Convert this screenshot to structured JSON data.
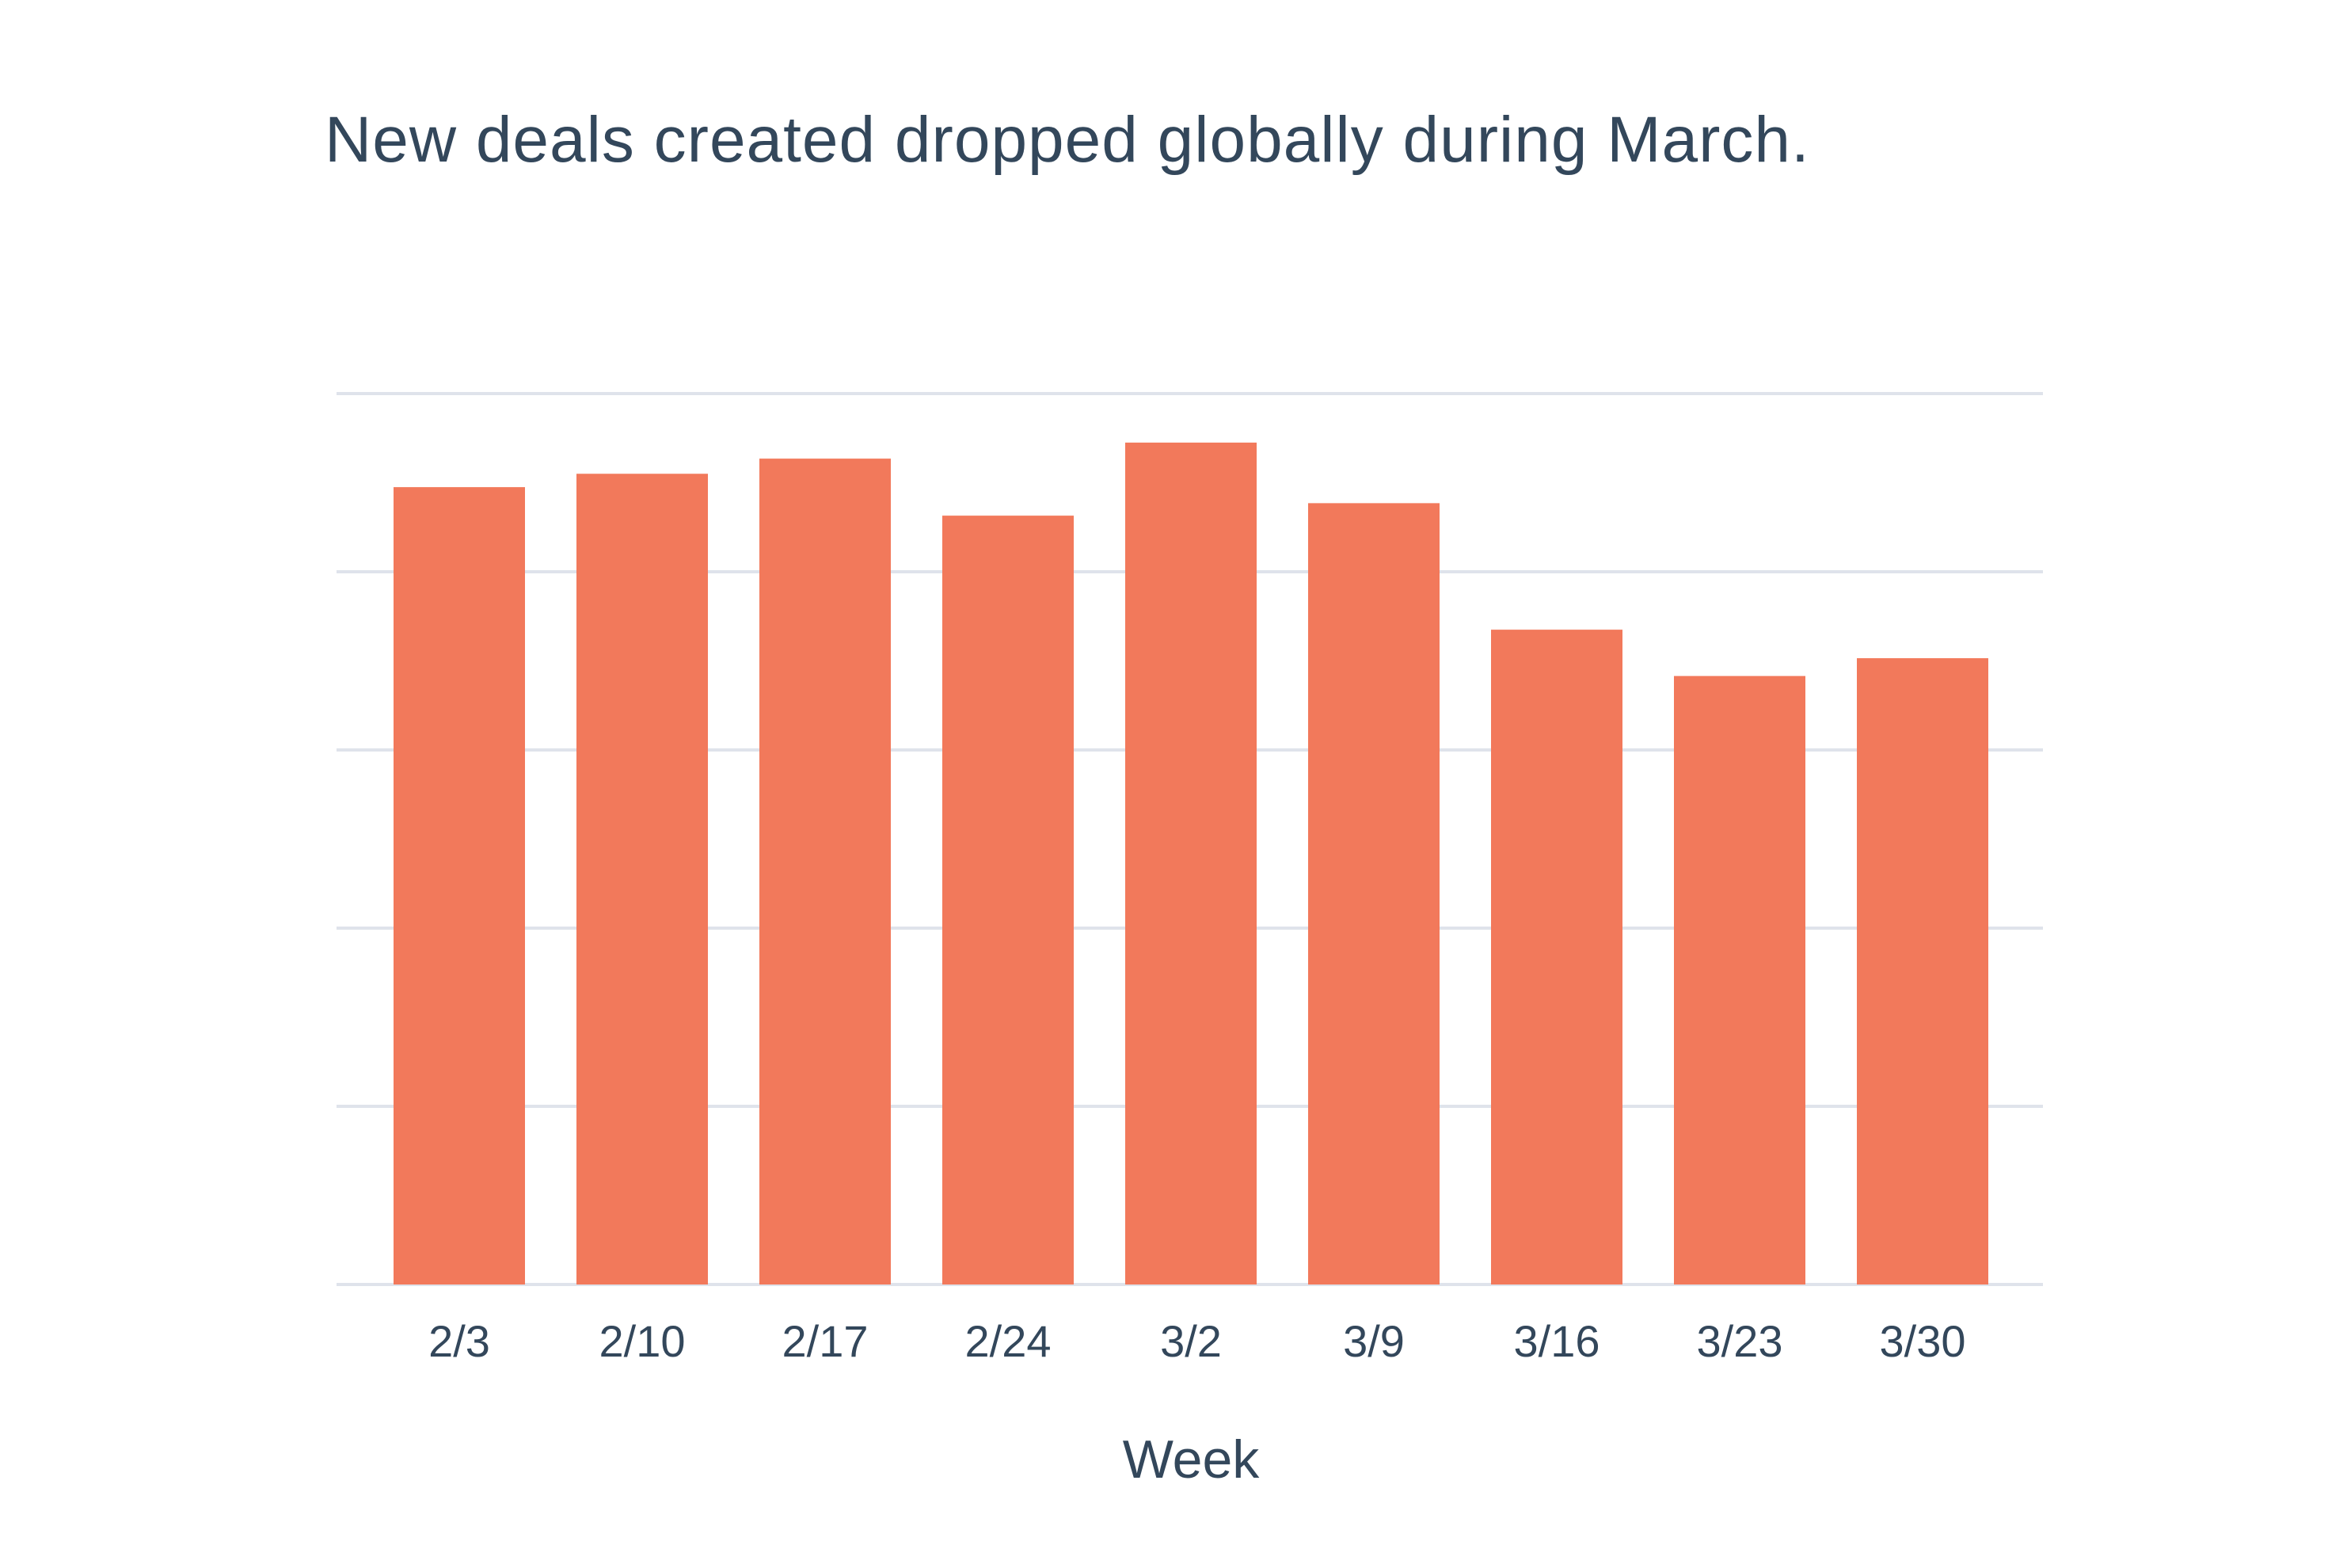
{
  "chart_data": {
    "type": "bar",
    "title": "New deals created dropped globally during March.",
    "xlabel": "Week",
    "ylabel": "",
    "categories": [
      "2/3",
      "2/10",
      "2/17",
      "2/24",
      "3/2",
      "3/9",
      "3/16",
      "3/23",
      "3/30"
    ],
    "values": [
      89.5,
      91,
      92.7,
      86.3,
      94.5,
      87.7,
      73.5,
      68.3,
      70.3
    ],
    "ylim": [
      0,
      100
    ],
    "y_gridlines": [
      0,
      20,
      40,
      60,
      80,
      100
    ],
    "y_tick_labels_visible": false,
    "grid": true,
    "legend": "none",
    "colors": {
      "bar": "#f2795b",
      "grid": "#dfe3eb",
      "text": "#33475b"
    }
  }
}
